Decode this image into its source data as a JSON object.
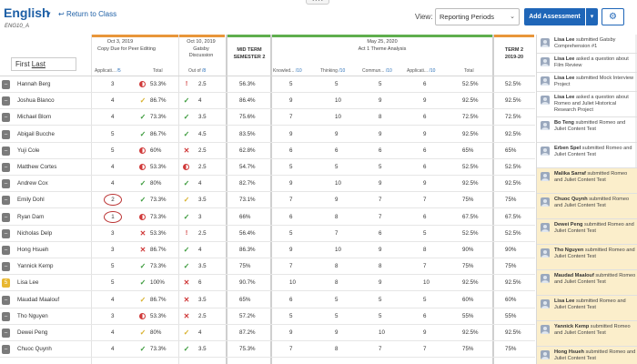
{
  "header": {
    "course_title": "English",
    "return_link": "Return to Class",
    "course_code": "ENG10_A",
    "view_label": "View:",
    "view_value": "Reporting Periods",
    "add_button": "Add Assessment",
    "gear_icon": "gear-icon"
  },
  "columns": {
    "g1_date": "Oct 3, 2019",
    "g1_title": "Copy Due for Peer Editing",
    "g1_app": "Applicati...",
    "g1_app_max": "/5",
    "g1_total": "Total",
    "g2_date": "Oct 10, 2019",
    "g2_title1": "Gatsby",
    "g2_title2": "Discussion",
    "g2_outof": "Out of",
    "g2_max": "/8",
    "midterm1": "MID TERM",
    "midterm2": "SEMESTER 2",
    "g3_date": "May 25, 2020",
    "g3_title": "Act 1 Theme Analysis",
    "g3_know": "Knowled...",
    "g3_know_max": "/10",
    "g3_think": "Thinking",
    "g3_think_max": "/10",
    "g3_comm": "Commun...",
    "g3_comm_max": "/10",
    "g3_app": "Applicati...",
    "g3_app_max": "/10",
    "g3_total": "Total",
    "term1": "TERM 2",
    "term2": "2019-20"
  },
  "filter": {
    "first": "First",
    "last": "Last"
  },
  "students": [
    {
      "name": "Hannah Berg",
      "a1": "3",
      "s1": "half",
      "p1": "53.3%",
      "s2": "excl",
      "o2": "2.5",
      "mt": "56.3%",
      "k": "5",
      "t": "5",
      "c": "5",
      "ap": "6",
      "tot": "52.5%",
      "term": "52.5%"
    },
    {
      "name": "Joshua Blanco",
      "a1": "4",
      "s1": "check-y",
      "p1": "86.7%",
      "s2": "check",
      "o2": "4",
      "mt": "86.4%",
      "k": "9",
      "t": "10",
      "c": "9",
      "ap": "9",
      "tot": "92.5%",
      "term": "92.5%"
    },
    {
      "name": "Michael Blom",
      "a1": "4",
      "s1": "check",
      "p1": "73.3%",
      "s2": "check",
      "o2": "3.5",
      "mt": "75.6%",
      "k": "7",
      "t": "10",
      "c": "8",
      "ap": "6",
      "tot": "72.5%",
      "term": "72.5%"
    },
    {
      "name": "Abigail Bucche",
      "a1": "5",
      "s1": "check",
      "p1": "86.7%",
      "s2": "check",
      "o2": "4.5",
      "mt": "83.5%",
      "k": "9",
      "t": "9",
      "c": "9",
      "ap": "9",
      "tot": "92.5%",
      "term": "92.5%"
    },
    {
      "name": "Yuji Cole",
      "a1": "5",
      "s1": "half",
      "p1": "60%",
      "s2": "cross",
      "o2": "2.5",
      "mt": "62.8%",
      "k": "6",
      "t": "6",
      "c": "6",
      "ap": "6",
      "tot": "65%",
      "term": "65%"
    },
    {
      "name": "Matthew Cortes",
      "a1": "4",
      "s1": "half",
      "p1": "53.3%",
      "s2": "half",
      "o2": "2.5",
      "mt": "54.7%",
      "k": "5",
      "t": "5",
      "c": "5",
      "ap": "6",
      "tot": "52.5%",
      "term": "52.5%"
    },
    {
      "name": "Andrew Cox",
      "a1": "4",
      "s1": "check",
      "p1": "80%",
      "s2": "check",
      "o2": "4",
      "mt": "82.7%",
      "k": "9",
      "t": "10",
      "c": "9",
      "ap": "9",
      "tot": "92.5%",
      "term": "92.5%"
    },
    {
      "name": "Emily Dohl",
      "a1": "2",
      "s1": "check",
      "p1": "73.3%",
      "s2": "check-y",
      "o2": "3.5",
      "mt": "73.1%",
      "k": "7",
      "t": "9",
      "c": "7",
      "ap": "7",
      "tot": "75%",
      "term": "75%",
      "circ": "1"
    },
    {
      "name": "Ryan Dam",
      "a1": "1",
      "s1": "half",
      "p1": "73.3%",
      "s2": "check",
      "o2": "3",
      "mt": "66%",
      "k": "6",
      "t": "8",
      "c": "7",
      "ap": "6",
      "tot": "67.5%",
      "term": "67.5%",
      "circ": "1"
    },
    {
      "name": "Nicholas Delp",
      "a1": "3",
      "s1": "cross",
      "p1": "53.3%",
      "s2": "excl",
      "o2": "2.5",
      "mt": "56.4%",
      "k": "5",
      "t": "7",
      "c": "6",
      "ap": "5",
      "tot": "52.5%",
      "term": "52.5%"
    },
    {
      "name": "Hong Hsueh",
      "a1": "3",
      "s1": "cross",
      "p1": "86.7%",
      "s2": "check",
      "o2": "4",
      "mt": "86.3%",
      "k": "9",
      "t": "10",
      "c": "9",
      "ap": "8",
      "tot": "90%",
      "term": "90%"
    },
    {
      "name": "Yannick Kemp",
      "a1": "5",
      "s1": "check",
      "p1": "73.3%",
      "s2": "check",
      "o2": "3.5",
      "mt": "75%",
      "k": "7",
      "t": "8",
      "c": "8",
      "ap": "7",
      "tot": "75%",
      "term": "75%"
    },
    {
      "name": "Lisa Lee",
      "a1": "5",
      "s1": "check",
      "p1": "100%",
      "s2": "cross",
      "o2": "6",
      "mt": "90.7%",
      "k": "10",
      "t": "8",
      "c": "9",
      "ap": "10",
      "tot": "92.5%",
      "term": "92.5%",
      "alt": "1"
    },
    {
      "name": "Maudad Maalouf",
      "a1": "4",
      "s1": "check-y",
      "p1": "86.7%",
      "s2": "cross",
      "o2": "3.5",
      "mt": "65%",
      "k": "6",
      "t": "5",
      "c": "5",
      "ap": "5",
      "tot": "60%",
      "term": "60%"
    },
    {
      "name": "Tho Nguyen",
      "a1": "3",
      "s1": "half",
      "p1": "53.3%",
      "s2": "cross",
      "o2": "2.5",
      "mt": "57.2%",
      "k": "5",
      "t": "5",
      "c": "5",
      "ap": "6",
      "tot": "55%",
      "term": "55%"
    },
    {
      "name": "Dewei Peng",
      "a1": "4",
      "s1": "check-y",
      "p1": "80%",
      "s2": "check-y",
      "o2": "4",
      "mt": "87.2%",
      "k": "9",
      "t": "9",
      "c": "10",
      "ap": "9",
      "tot": "92.5%",
      "term": "92.5%"
    },
    {
      "name": "Chuoc Quynh",
      "a1": "4",
      "s1": "check",
      "p1": "73.3%",
      "s2": "check",
      "o2": "3.5",
      "mt": "75.3%",
      "k": "7",
      "t": "8",
      "c": "7",
      "ap": "7",
      "tot": "75%",
      "term": "75%"
    }
  ],
  "feed": [
    {
      "who": "Lisa Lee",
      "text": "submitted Gatsby Comprehension #1",
      "hl": false
    },
    {
      "who": "Lisa Lee",
      "text": "asked a question about Film Review",
      "hl": false
    },
    {
      "who": "Lisa Lee",
      "text": "submitted Mock Interview Project",
      "hl": false
    },
    {
      "who": "Lisa Lee",
      "text": "asked a question about Romeo and Juliet Historical Research Project",
      "hl": false
    },
    {
      "who": "Bo Teng",
      "text": "submitted Romeo and Juliet Content Test",
      "hl": false
    },
    {
      "who": "Erben Spel",
      "text": "submitted Romeo and Juliet Content Test",
      "hl": false
    },
    {
      "who": "Malika Sarraf",
      "text": "submitted Romeo and Juliet Content Test",
      "hl": true
    },
    {
      "who": "Chuoc Quynh",
      "text": "submitted Romeo and Juliet Content Test",
      "hl": true
    },
    {
      "who": "Dewei Peng",
      "text": "submitted Romeo and Juliet Content Test",
      "hl": true
    },
    {
      "who": "Tho Nguyen",
      "text": "submitted Romeo and Juliet Content Test",
      "hl": true
    },
    {
      "who": "Maudad Maalouf",
      "text": "submitted Romeo and Juliet Content Test",
      "hl": true
    },
    {
      "who": "Lisa Lee",
      "text": "submitted Romeo and Juliet Content Test",
      "hl": true
    },
    {
      "who": "Yannick Kemp",
      "text": "submitted Romeo and Juliet Content Test",
      "hl": true
    },
    {
      "who": "Hong Hsueh",
      "text": "submitted Romeo and Juliet Content Test",
      "hl": true
    }
  ],
  "colors": {
    "accent": "#1f66b8",
    "orange_bar": "#e8963a",
    "green_bar": "#5fae4e",
    "highlight": "#fbeecb"
  }
}
